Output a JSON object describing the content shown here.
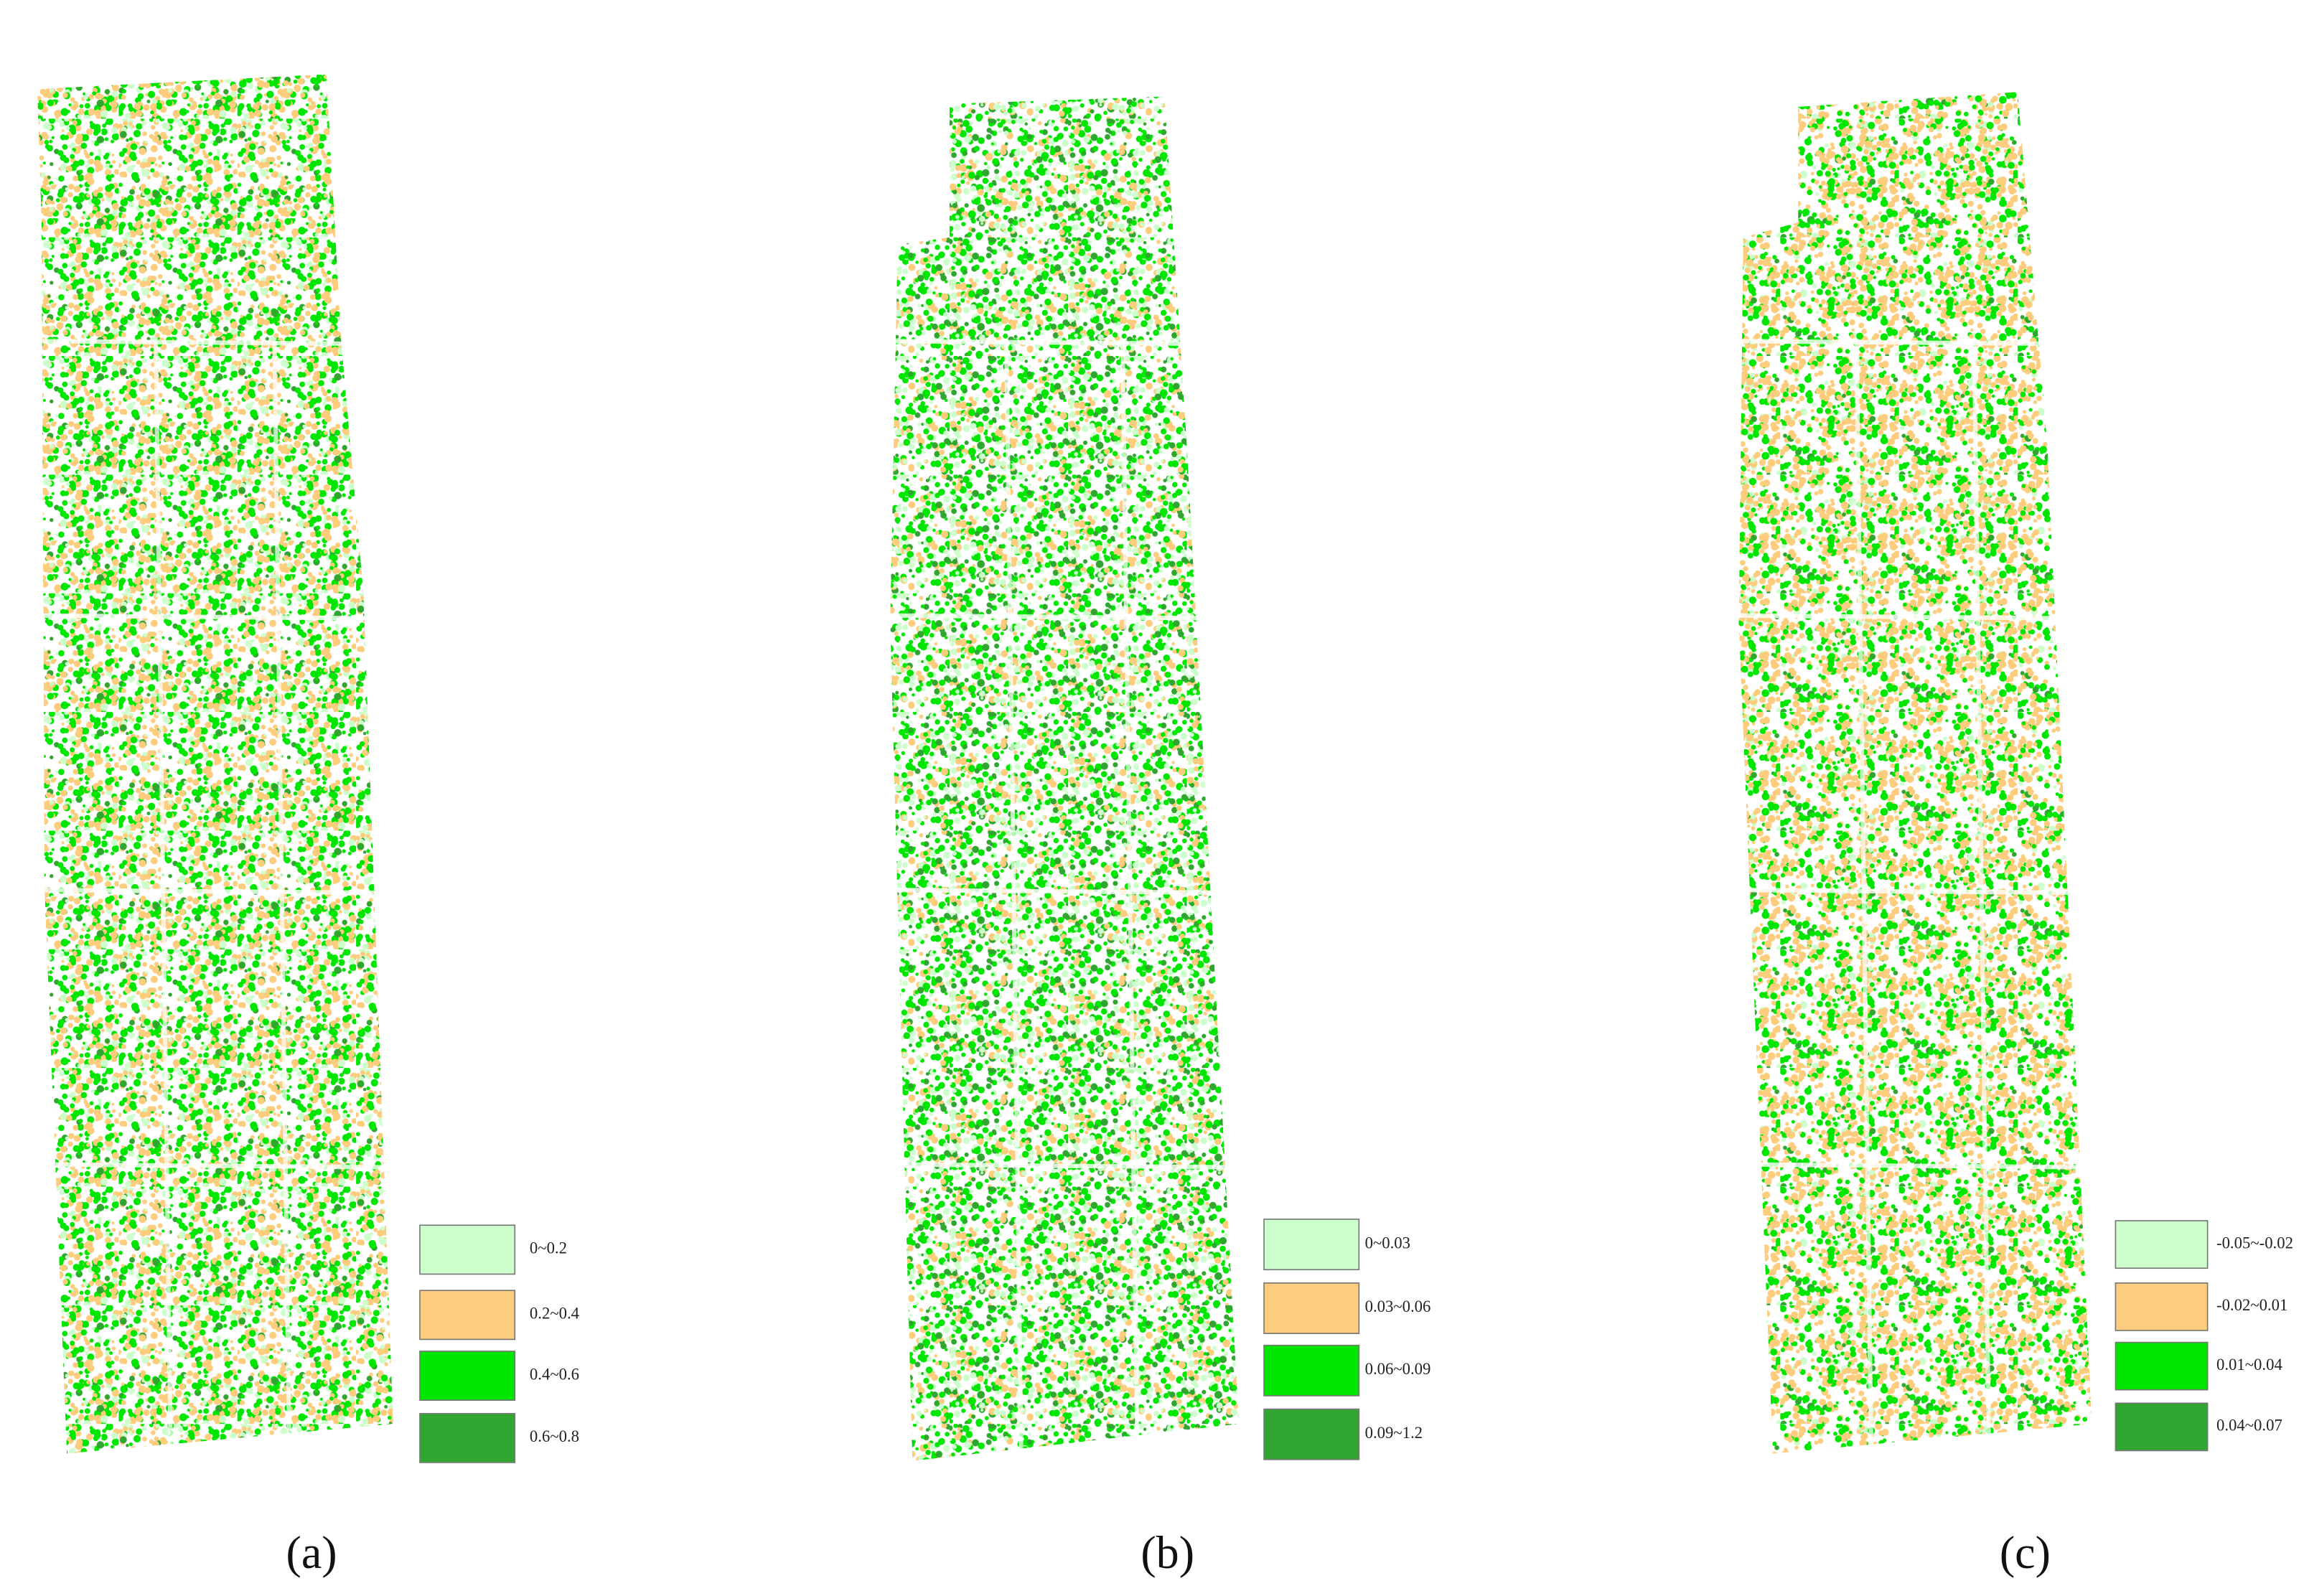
{
  "panels": [
    {
      "label": "(a)",
      "legend": [
        {
          "label": "0~0.2",
          "color": "#ccffcc"
        },
        {
          "label": "0.2~0.4",
          "color": "#fdcc7c"
        },
        {
          "label": "0.4~0.6",
          "color": "#00e600"
        },
        {
          "label": "0.6~0.8",
          "color": "#30a530"
        }
      ]
    },
    {
      "label": "(b)",
      "legend": [
        {
          "label": "0~0.03",
          "color": "#ccffcc"
        },
        {
          "label": "0.03~0.06",
          "color": "#fdcc7c"
        },
        {
          "label": "0.06~0.09",
          "color": "#00e600"
        },
        {
          "label": "0.09~1.2",
          "color": "#30a530"
        }
      ]
    },
    {
      "label": "(c)",
      "legend": [
        {
          "label": "-0.05~-0.02",
          "color": "#ccffcc"
        },
        {
          "label": "-0.02~0.01",
          "color": "#fdcc7c"
        },
        {
          "label": "0.01~0.04",
          "color": "#00e600"
        },
        {
          "label": "0.04~0.07",
          "color": "#30a530"
        }
      ]
    }
  ]
}
